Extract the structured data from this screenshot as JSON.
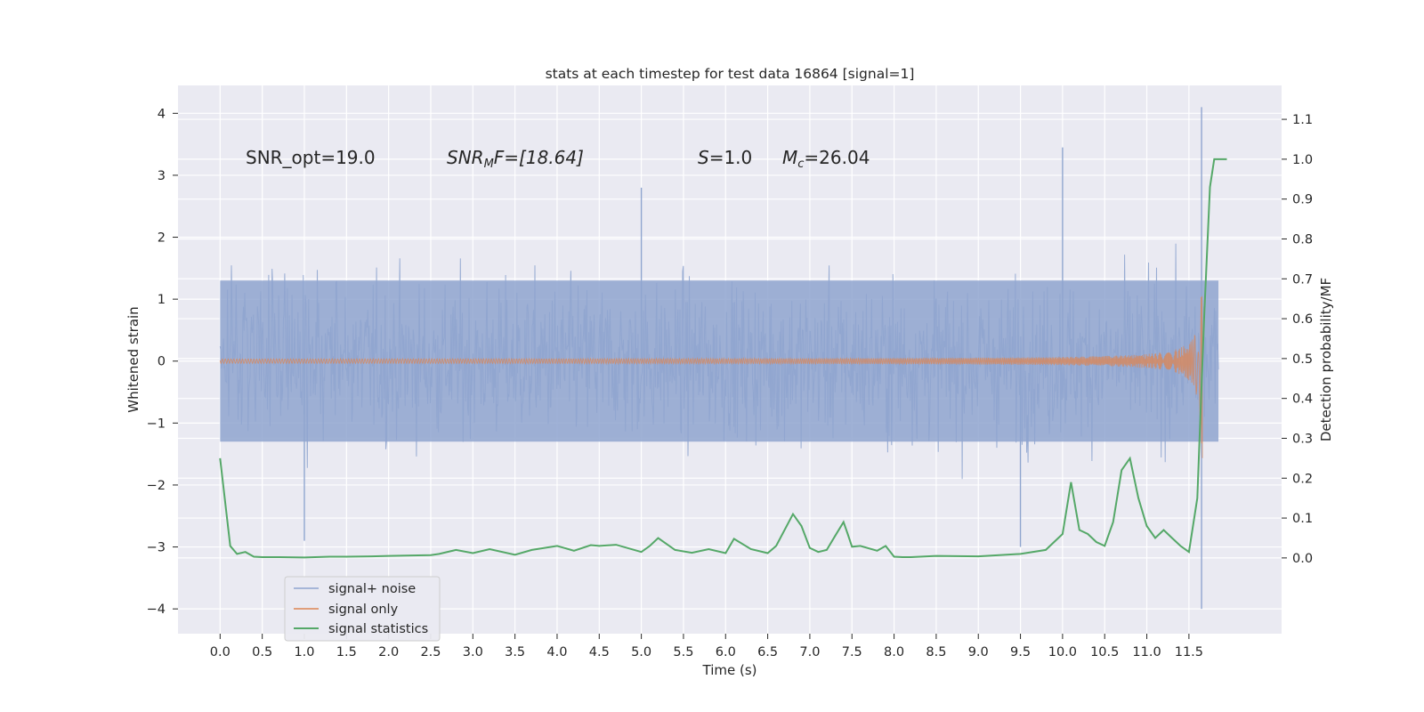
{
  "chart_data": {
    "type": "line",
    "title": "stats at each timestep for test data 16864 [signal=1]",
    "xlabel": "Time (s)",
    "ylabel_left": "Whitened strain",
    "ylabel_right": "Detection probability/MF",
    "xlim": [
      -0.5,
      12.6
    ],
    "ylim_left": [
      -4.4,
      4.45
    ],
    "ylim_right": [
      -0.19,
      1.185
    ],
    "x_ticks": [
      "0.0",
      "0.5",
      "1.0",
      "1.5",
      "2.0",
      "2.5",
      "3.0",
      "3.5",
      "4.0",
      "4.5",
      "5.0",
      "5.5",
      "6.0",
      "6.5",
      "7.0",
      "7.5",
      "8.0",
      "8.5",
      "9.0",
      "9.5",
      "10.0",
      "10.5",
      "11.0",
      "11.5"
    ],
    "y_ticks_left": [
      "4",
      "3",
      "2",
      "1",
      "0",
      "−1",
      "−2",
      "−3",
      "−4"
    ],
    "y_ticks_right": [
      "1.1",
      "1.0",
      "0.9",
      "0.8",
      "0.7",
      "0.6",
      "0.5",
      "0.4",
      "0.3",
      "0.2",
      "0.1",
      "0.0"
    ],
    "grid": true,
    "legend_position": "bottom-left",
    "annotations": {
      "snr_opt": "SNR_opt=19.0",
      "snr_mf_symbol": "SNR",
      "snr_mf_sub": "M",
      "snr_mf_rest": "F=[18.64]",
      "s_symbol": "S",
      "s_rest": "=1.0",
      "mc_symbol": "M",
      "mc_sub": "c",
      "mc_rest": "=26.04"
    },
    "colors": {
      "background": "#eaeaf2",
      "grid": "#ffffff",
      "noise": "#8fa5cf",
      "signal_only": "#dd8452",
      "statistics": "#55a868",
      "text": "#262626"
    },
    "series": [
      {
        "name": "signal+ noise",
        "axis": "left",
        "envelope": {
          "duration": 11.85,
          "typical_amplitude": 1.3,
          "extreme_amplitude": [
            2.5,
            -2.5
          ],
          "peaks": [
            [
              10.0,
              3.45
            ],
            [
              11.65,
              4.1
            ],
            [
              11.65,
              -4.0
            ],
            [
              9.5,
              -3.0
            ],
            [
              1.0,
              -2.9
            ],
            [
              5.0,
              2.8
            ]
          ]
        }
      },
      {
        "name": "signal only",
        "axis": "left",
        "chirp": {
          "merger_time": 11.66,
          "peak_amplitude": 3.2,
          "start_amplitude": 0.03
        }
      },
      {
        "name": "signal statistics",
        "axis": "right",
        "x": [
          0.0,
          0.12,
          0.2,
          0.3,
          0.4,
          0.5,
          0.7,
          1.0,
          1.3,
          1.5,
          1.8,
          2.0,
          2.2,
          2.5,
          2.6,
          2.8,
          3.0,
          3.2,
          3.5,
          3.7,
          4.0,
          4.2,
          4.4,
          4.5,
          4.7,
          5.0,
          5.1,
          5.2,
          5.4,
          5.6,
          5.8,
          6.0,
          6.1,
          6.3,
          6.5,
          6.6,
          6.8,
          6.9,
          7.0,
          7.1,
          7.2,
          7.3,
          7.4,
          7.45,
          7.5,
          7.6,
          7.8,
          7.9,
          8.0,
          8.1,
          8.2,
          8.5,
          9.0,
          9.5,
          9.8,
          10.0,
          10.1,
          10.2,
          10.3,
          10.4,
          10.5,
          10.6,
          10.7,
          10.8,
          10.9,
          11.0,
          11.1,
          11.2,
          11.3,
          11.4,
          11.5,
          11.6,
          11.68,
          11.75,
          11.8,
          11.85,
          11.9,
          11.95
        ],
        "values": [
          0.25,
          0.03,
          0.01,
          0.015,
          0.003,
          0.002,
          0.002,
          0.001,
          0.003,
          0.003,
          0.004,
          0.005,
          0.006,
          0.007,
          0.01,
          0.02,
          0.012,
          0.022,
          0.008,
          0.02,
          0.03,
          0.018,
          0.032,
          0.03,
          0.033,
          0.015,
          0.03,
          0.05,
          0.02,
          0.013,
          0.022,
          0.012,
          0.048,
          0.022,
          0.012,
          0.03,
          0.11,
          0.08,
          0.025,
          0.015,
          0.02,
          0.055,
          0.09,
          0.06,
          0.028,
          0.03,
          0.018,
          0.03,
          0.003,
          0.002,
          0.002,
          0.005,
          0.004,
          0.01,
          0.02,
          0.06,
          0.19,
          0.07,
          0.06,
          0.04,
          0.03,
          0.09,
          0.22,
          0.25,
          0.15,
          0.08,
          0.05,
          0.07,
          0.05,
          0.03,
          0.015,
          0.15,
          0.6,
          0.93,
          1.0,
          1.0,
          1.0,
          1.0
        ]
      }
    ]
  }
}
